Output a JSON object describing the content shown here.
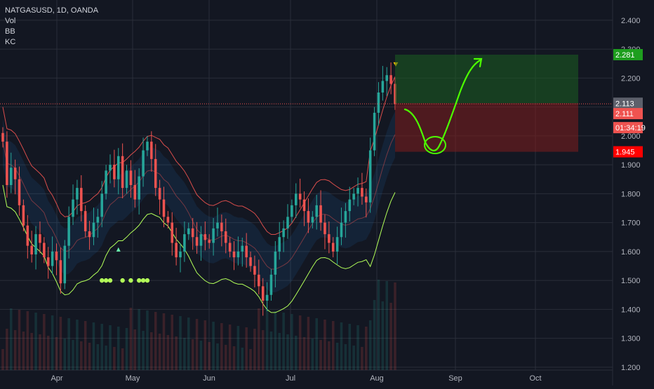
{
  "chart_data": {
    "type": "candlestick",
    "symbol_label": "NATGASUSD, 1D, OANDA",
    "indicators": [
      "Vol",
      "BB",
      "KC"
    ],
    "y_axis": {
      "range": [
        1.19,
        2.47
      ],
      "ticks": [
        "2.400",
        "2.300",
        "2.200",
        "2.100",
        "2.000",
        "1.900",
        "1.800",
        "1.700",
        "1.600",
        "1.500",
        "1.400",
        "1.300",
        "1.200"
      ]
    },
    "x_axis": {
      "ticks": [
        "Apr",
        "May",
        "Jun",
        "Jul",
        "Aug",
        "Sep",
        "Oct"
      ]
    },
    "price_badges": [
      {
        "value": "2.281",
        "color": "#1e9e1e",
        "text_color": "#ffffff"
      },
      {
        "value": "2.113",
        "color": "#5d606b",
        "text_color": "#ffffff"
      },
      {
        "value": "2.111",
        "color": "#ef5350",
        "text_color": "#ffffff"
      },
      {
        "value": "01:34:19",
        "color": "#ef5350",
        "text_color": "#ffffff"
      },
      {
        "value": "1.945",
        "color": "#ff0000",
        "text_color": "#ffffff"
      }
    ],
    "position_tool": {
      "entry": 2.113,
      "target": 2.281,
      "stop": 1.945,
      "profit_color": "#1b5e20",
      "loss_color": "#7f1d1d"
    },
    "current_price": 2.111,
    "price_line_color": "#ef5350",
    "series_colors": {
      "up": "#26a69a",
      "down": "#ef5350",
      "bb_upper": "#ef5350",
      "bb_basis": "#ef5350",
      "bb_lower": "#b2ff59",
      "kc_band": "#2196f3",
      "volume": "#26a69a",
      "annotation": "#4cff00",
      "markers": "#b2ff59"
    },
    "close_path": [
      1.98,
      1.83,
      1.89,
      1.85,
      1.76,
      1.69,
      1.62,
      1.59,
      1.66,
      1.63,
      1.58,
      1.55,
      1.6,
      1.57,
      1.49,
      1.62,
      1.72,
      1.78,
      1.82,
      1.74,
      1.67,
      1.65,
      1.7,
      1.72,
      1.8,
      1.88,
      1.9,
      1.85,
      1.93,
      1.82,
      1.88,
      1.83,
      1.78,
      1.86,
      1.95,
      1.98,
      1.92,
      1.82,
      1.78,
      1.72,
      1.7,
      1.63,
      1.58,
      1.6,
      1.66,
      1.68,
      1.65,
      1.62,
      1.66,
      1.64,
      1.63,
      1.68,
      1.7,
      1.67,
      1.63,
      1.6,
      1.58,
      1.6,
      1.62,
      1.58,
      1.55,
      1.52,
      1.48,
      1.43,
      1.45,
      1.52,
      1.6,
      1.65,
      1.68,
      1.72,
      1.76,
      1.8,
      1.78,
      1.74,
      1.7,
      1.72,
      1.76,
      1.7,
      1.66,
      1.63,
      1.6,
      1.65,
      1.7,
      1.74,
      1.78,
      1.8,
      1.82,
      1.79,
      1.77,
      1.95,
      2.08,
      2.15,
      2.19,
      2.21,
      2.18,
      2.11
    ]
  }
}
